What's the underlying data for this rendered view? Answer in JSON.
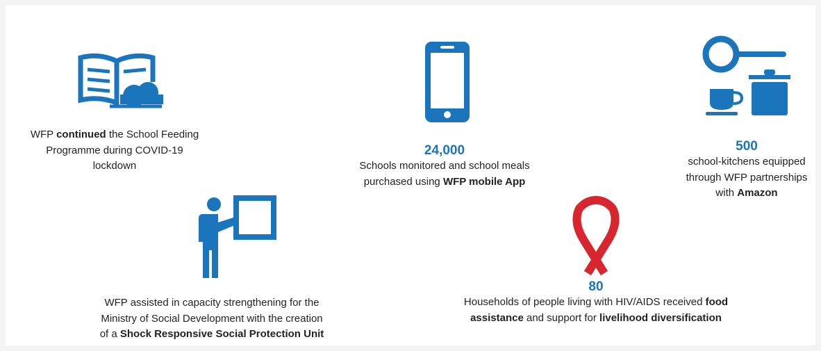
{
  "items": [
    {
      "lines": [
        [
          {
            "text": "WFP ",
            "bold": false
          },
          {
            "text": "continued",
            "bold": true
          },
          {
            "text": " the School Feeding",
            "bold": false
          }
        ],
        [
          {
            "text": "Programme during COVID-19",
            "bold": false
          }
        ],
        [
          {
            "text": "lockdown",
            "bold": false
          }
        ]
      ]
    },
    {
      "stat": "24,000",
      "lines": [
        [
          {
            "text": "Schools monitored and school meals",
            "bold": false
          }
        ],
        [
          {
            "text": "purchased using ",
            "bold": false
          },
          {
            "text": "WFP mobile App",
            "bold": true
          }
        ]
      ]
    },
    {
      "stat": "500",
      "lines": [
        [
          {
            "text": "school-kitchens equipped",
            "bold": false
          }
        ],
        [
          {
            "text": "through WFP partnerships",
            "bold": false
          }
        ],
        [
          {
            "text": "with ",
            "bold": false
          },
          {
            "text": "Amazon",
            "bold": true
          }
        ]
      ]
    },
    {
      "lines": [
        [
          {
            "text": "WFP assisted in capacity strengthening for the",
            "bold": false
          }
        ],
        [
          {
            "text": "Ministry of Social Development with the creation",
            "bold": false
          }
        ],
        [
          {
            "text": "of a ",
            "bold": false
          },
          {
            "text": "Shock Responsive Social Protection Unit",
            "bold": true
          }
        ]
      ]
    },
    {
      "stat": "80",
      "lines": [
        [
          {
            "text": "Households of people living with HIV/AIDS received ",
            "bold": false
          },
          {
            "text": "food",
            "bold": true
          }
        ],
        [
          {
            "text": "assistance",
            "bold": true
          },
          {
            "text": " and support for ",
            "bold": false
          },
          {
            "text": "livelihood diversification",
            "bold": true
          }
        ]
      ]
    }
  ]
}
